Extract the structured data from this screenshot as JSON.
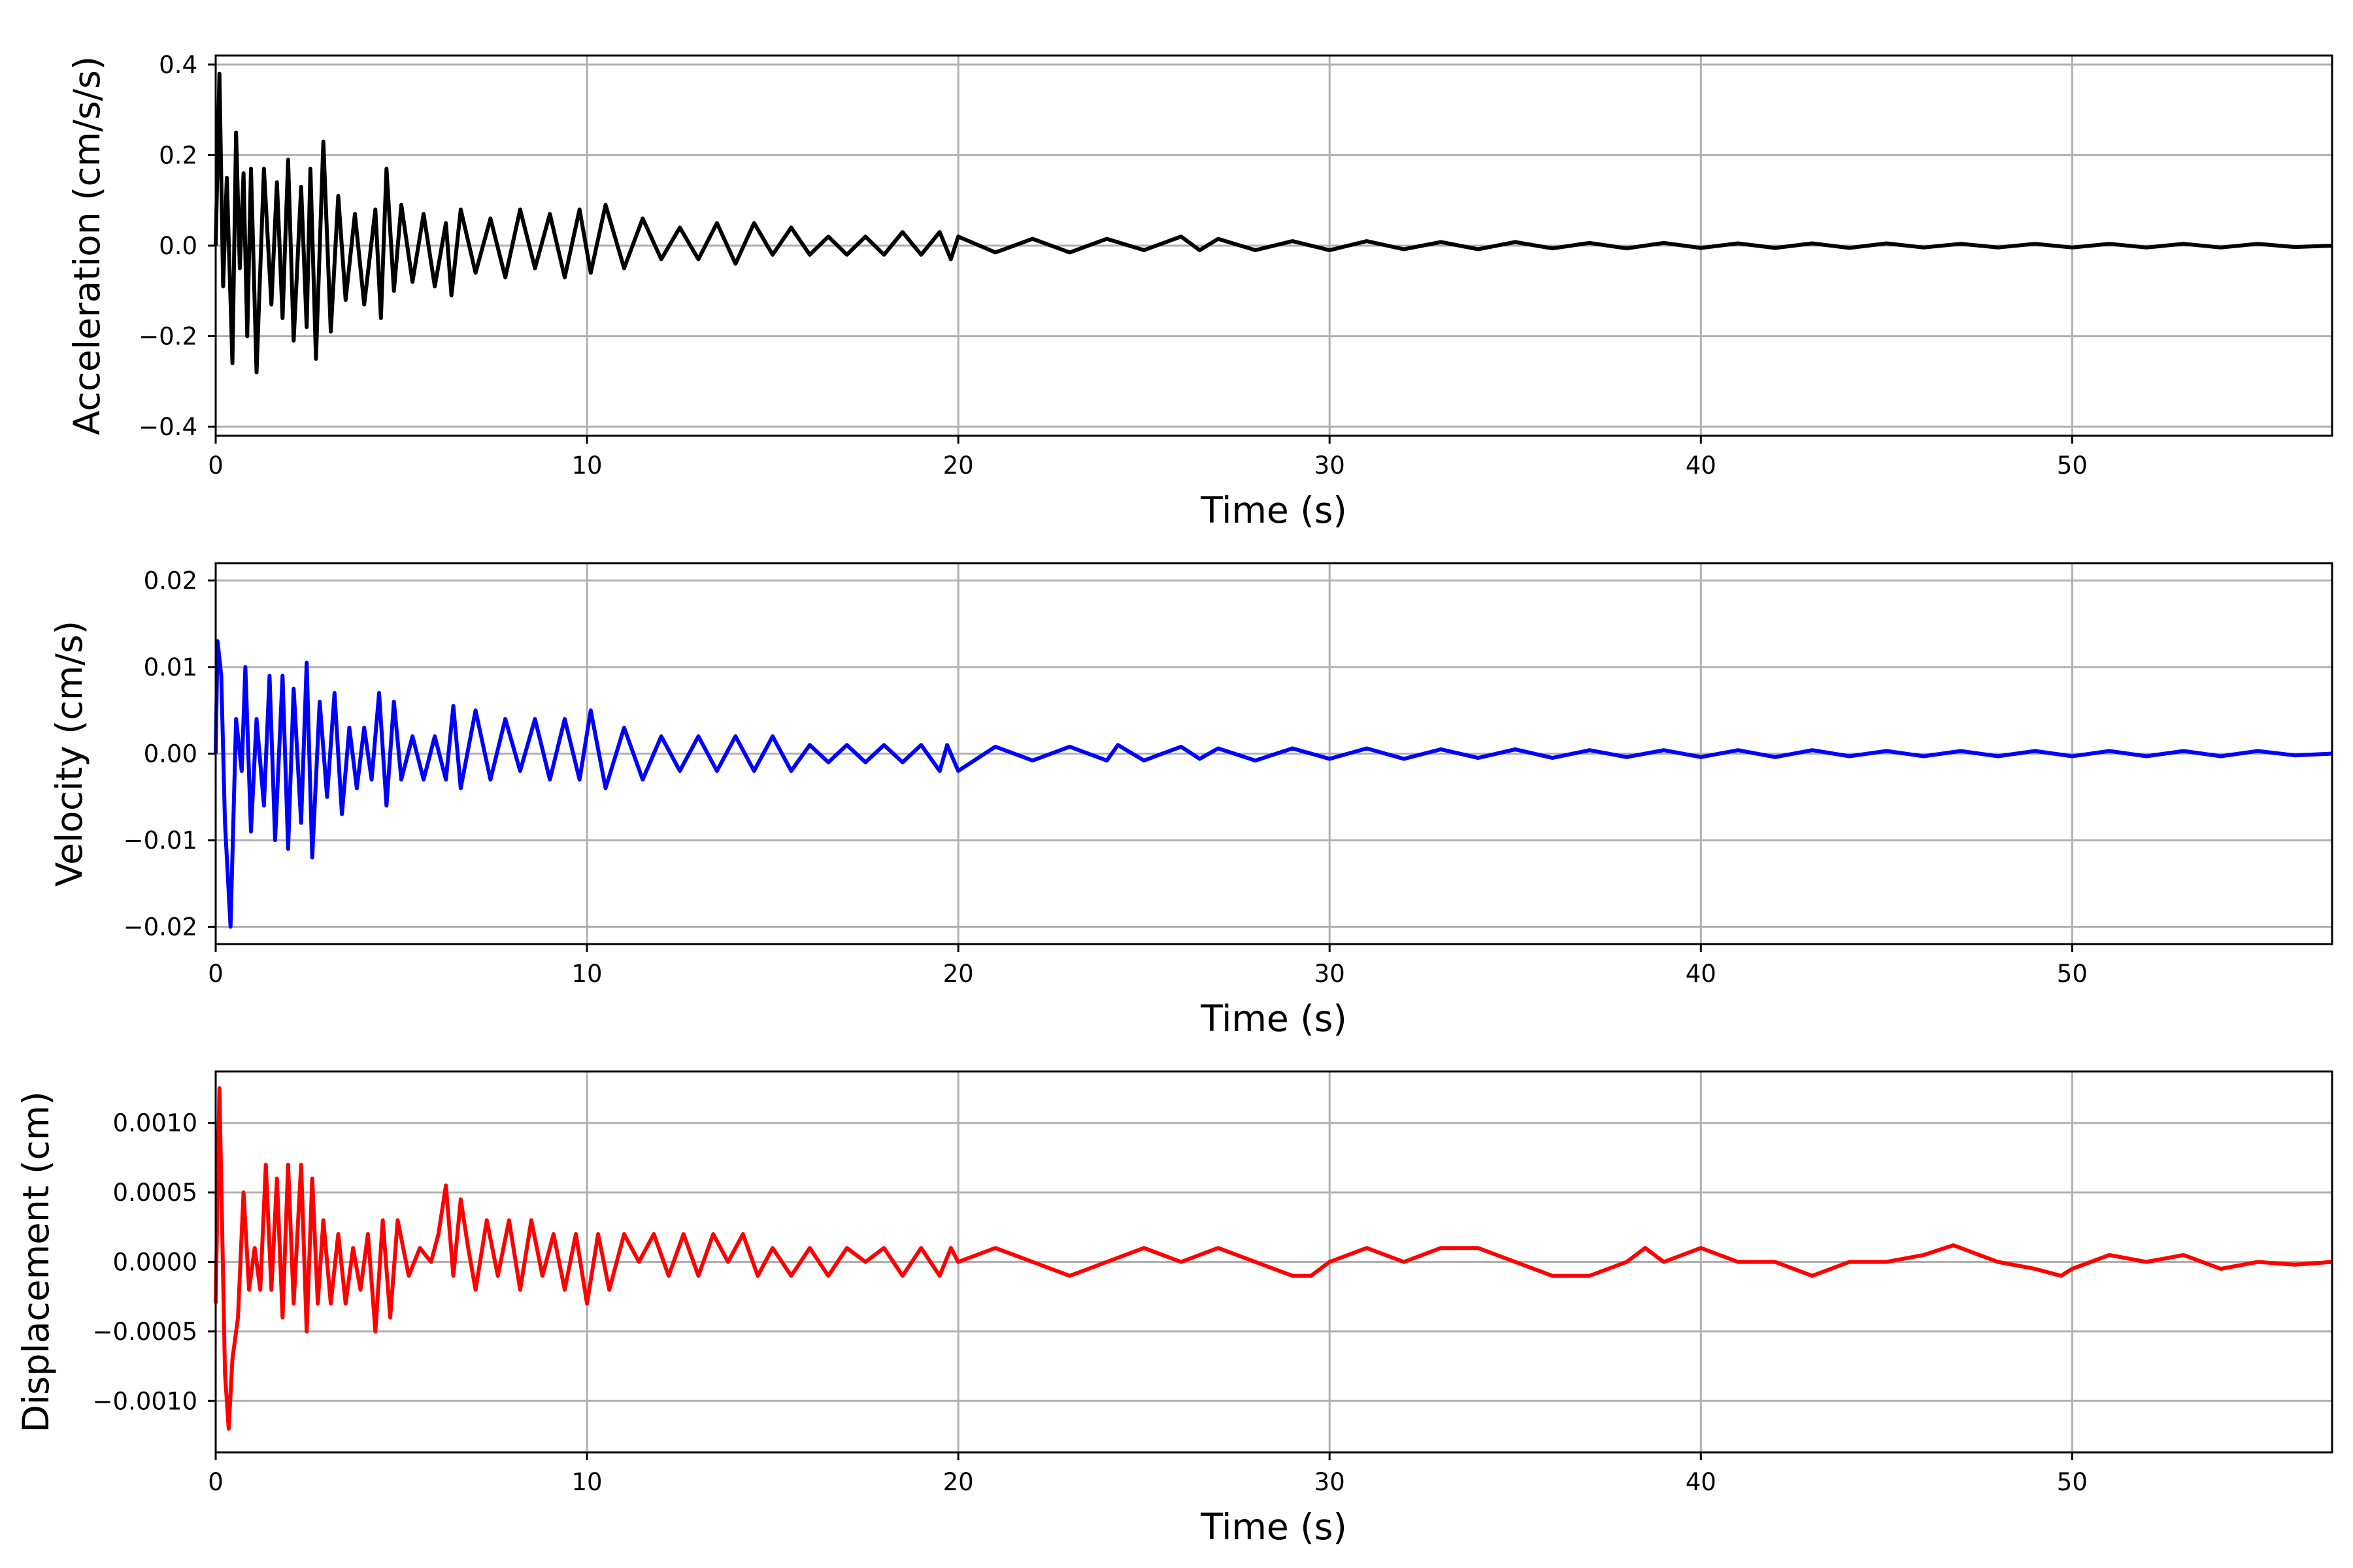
{
  "chart_data": [
    {
      "type": "line",
      "xlabel": "Time (s)",
      "ylabel": "Acceleration (cm/s/s)",
      "xlim": [
        0,
        57
      ],
      "ylim": [
        -0.42,
        0.42
      ],
      "xticks": [
        0,
        10,
        20,
        30,
        40,
        50
      ],
      "xtick_labels": [
        "0",
        "10",
        "20",
        "30",
        "40",
        "50"
      ],
      "yticks": [
        -0.4,
        -0.2,
        0.0,
        0.2,
        0.4
      ],
      "ytick_labels": [
        "−0.4",
        "−0.2",
        "0.0",
        "0.2",
        "0.4"
      ],
      "grid": true,
      "color": "#000000",
      "series": [
        {
          "x": [
            0,
            0.1,
            0.2,
            0.3,
            0.45,
            0.55,
            0.65,
            0.75,
            0.85,
            0.95,
            1.1,
            1.3,
            1.5,
            1.65,
            1.8,
            1.95,
            2.1,
            2.3,
            2.45,
            2.55,
            2.7,
            2.9,
            3.1,
            3.3,
            3.5,
            3.75,
            4.0,
            4.3,
            4.45,
            4.6,
            4.8,
            5.0,
            5.3,
            5.6,
            5.9,
            6.2,
            6.35,
            6.6,
            7.0,
            7.4,
            7.8,
            8.2,
            8.6,
            9.0,
            9.4,
            9.8,
            10.1,
            10.5,
            11.0,
            11.5,
            12.0,
            12.5,
            13.0,
            13.5,
            14.0,
            14.5,
            15.0,
            15.5,
            16.0,
            16.5,
            17.0,
            17.5,
            18.0,
            18.5,
            19.0,
            19.5,
            19.8,
            20.0,
            21.0,
            22.0,
            23.0,
            24.0,
            25.0,
            26.0,
            26.5,
            27.0,
            28.0,
            29.0,
            30.0,
            31.0,
            32.0,
            33.0,
            34.0,
            35.0,
            36.0,
            37.0,
            38.0,
            39.0,
            40.0,
            41.0,
            42.0,
            43.0,
            44.0,
            45.0,
            46.0,
            47.0,
            48.0,
            49.0,
            50.0,
            51.0,
            52.0,
            53.0,
            54.0,
            55.0,
            56.0,
            57.0
          ],
          "y": [
            0.0,
            0.38,
            -0.09,
            0.15,
            -0.26,
            0.25,
            -0.05,
            0.16,
            -0.2,
            0.17,
            -0.28,
            0.17,
            -0.13,
            0.14,
            -0.16,
            0.19,
            -0.21,
            0.13,
            -0.18,
            0.17,
            -0.25,
            0.23,
            -0.19,
            0.11,
            -0.12,
            0.07,
            -0.13,
            0.08,
            -0.16,
            0.17,
            -0.1,
            0.09,
            -0.08,
            0.07,
            -0.09,
            0.05,
            -0.11,
            0.08,
            -0.06,
            0.06,
            -0.07,
            0.08,
            -0.05,
            0.07,
            -0.07,
            0.08,
            -0.06,
            0.09,
            -0.05,
            0.06,
            -0.03,
            0.04,
            -0.03,
            0.05,
            -0.04,
            0.05,
            -0.02,
            0.04,
            -0.02,
            0.02,
            -0.02,
            0.02,
            -0.02,
            0.03,
            -0.02,
            0.03,
            -0.03,
            0.02,
            -0.015,
            0.015,
            -0.015,
            0.015,
            -0.01,
            0.02,
            -0.01,
            0.015,
            -0.01,
            0.01,
            -0.01,
            0.01,
            -0.008,
            0.008,
            -0.008,
            0.008,
            -0.006,
            0.006,
            -0.006,
            0.006,
            -0.005,
            0.005,
            -0.005,
            0.005,
            -0.005,
            0.005,
            -0.004,
            0.004,
            -0.004,
            0.004,
            -0.004,
            0.004,
            -0.004,
            0.004,
            -0.004,
            0.004,
            -0.003,
            0.0
          ]
        }
      ]
    },
    {
      "type": "line",
      "xlabel": "Time (s)",
      "ylabel": "Velocity (cm/s)",
      "xlim": [
        0,
        57
      ],
      "ylim": [
        -0.022,
        0.022
      ],
      "xticks": [
        0,
        10,
        20,
        30,
        40,
        50
      ],
      "xtick_labels": [
        "0",
        "10",
        "20",
        "30",
        "40",
        "50"
      ],
      "yticks": [
        -0.02,
        -0.01,
        0.0,
        0.01,
        0.02
      ],
      "ytick_labels": [
        "−0.02",
        "−0.01",
        "0.00",
        "0.01",
        "0.02"
      ],
      "grid": true,
      "color": "#0000ff",
      "series": [
        {
          "x": [
            0,
            0.05,
            0.15,
            0.25,
            0.4,
            0.55,
            0.7,
            0.8,
            0.95,
            1.1,
            1.3,
            1.45,
            1.6,
            1.8,
            1.95,
            2.1,
            2.3,
            2.45,
            2.6,
            2.8,
            3.0,
            3.2,
            3.4,
            3.6,
            3.8,
            4.0,
            4.2,
            4.4,
            4.6,
            4.8,
            5.0,
            5.3,
            5.6,
            5.9,
            6.2,
            6.4,
            6.6,
            7.0,
            7.4,
            7.8,
            8.2,
            8.6,
            9.0,
            9.4,
            9.8,
            10.1,
            10.5,
            11.0,
            11.5,
            12.0,
            12.5,
            13.0,
            13.5,
            14.0,
            14.5,
            15.0,
            15.5,
            16.0,
            16.5,
            17.0,
            17.5,
            18.0,
            18.5,
            19.0,
            19.5,
            19.7,
            20.0,
            21.0,
            22.0,
            23.0,
            24.0,
            24.3,
            25.0,
            26.0,
            26.5,
            27.0,
            28.0,
            29.0,
            30.0,
            31.0,
            32.0,
            33.0,
            34.0,
            35.0,
            36.0,
            37.0,
            38.0,
            39.0,
            40.0,
            41.0,
            42.0,
            43.0,
            44.0,
            45.0,
            46.0,
            47.0,
            48.0,
            49.0,
            50.0,
            51.0,
            52.0,
            53.0,
            54.0,
            55.0,
            56.0,
            57.0
          ],
          "y": [
            0.0,
            0.013,
            0.009,
            -0.008,
            -0.02,
            0.004,
            -0.002,
            0.01,
            -0.009,
            0.004,
            -0.006,
            0.009,
            -0.01,
            0.009,
            -0.011,
            0.0075,
            -0.008,
            0.0105,
            -0.012,
            0.006,
            -0.005,
            0.007,
            -0.007,
            0.003,
            -0.004,
            0.003,
            -0.003,
            0.007,
            -0.006,
            0.006,
            -0.003,
            0.002,
            -0.003,
            0.002,
            -0.003,
            0.0055,
            -0.004,
            0.005,
            -0.003,
            0.004,
            -0.002,
            0.004,
            -0.003,
            0.004,
            -0.003,
            0.005,
            -0.004,
            0.003,
            -0.003,
            0.002,
            -0.002,
            0.002,
            -0.002,
            0.002,
            -0.002,
            0.002,
            -0.002,
            0.001,
            -0.001,
            0.001,
            -0.001,
            0.001,
            -0.001,
            0.001,
            -0.002,
            0.001,
            -0.002,
            0.0008,
            -0.0008,
            0.0008,
            -0.0008,
            0.001,
            -0.0008,
            0.0008,
            -0.0006,
            0.0006,
            -0.0008,
            0.0006,
            -0.0006,
            0.0006,
            -0.0006,
            0.0005,
            -0.0005,
            0.0005,
            -0.0005,
            0.0004,
            -0.0004,
            0.0004,
            -0.0004,
            0.0004,
            -0.0004,
            0.0004,
            -0.0003,
            0.0003,
            -0.0003,
            0.0003,
            -0.0003,
            0.0003,
            -0.0003,
            0.0003,
            -0.0003,
            0.0003,
            -0.0003,
            0.0003,
            -0.0002,
            0.0
          ]
        }
      ]
    },
    {
      "type": "line",
      "xlabel": "Time (s)",
      "ylabel": "Displacement (cm)",
      "xlim": [
        0,
        57
      ],
      "ylim": [
        -0.00137,
        0.00137
      ],
      "xticks": [
        0,
        10,
        20,
        30,
        40,
        50
      ],
      "xtick_labels": [
        "0",
        "10",
        "20",
        "30",
        "40",
        "50"
      ],
      "yticks": [
        -0.001,
        -0.0005,
        0.0,
        0.0005,
        0.001
      ],
      "ytick_labels": [
        "−0.0010",
        "−0.0005",
        "0.0000",
        "0.0005",
        "0.0010"
      ],
      "grid": true,
      "color": "#ff0000",
      "series": [
        {
          "x": [
            0,
            0.1,
            0.25,
            0.35,
            0.45,
            0.6,
            0.75,
            0.9,
            1.05,
            1.2,
            1.35,
            1.5,
            1.65,
            1.8,
            1.95,
            2.1,
            2.3,
            2.45,
            2.6,
            2.75,
            2.9,
            3.1,
            3.3,
            3.5,
            3.7,
            3.9,
            4.1,
            4.3,
            4.5,
            4.7,
            4.9,
            5.2,
            5.5,
            5.8,
            6.0,
            6.2,
            6.4,
            6.6,
            6.8,
            7.0,
            7.3,
            7.6,
            7.9,
            8.2,
            8.5,
            8.8,
            9.1,
            9.4,
            9.7,
            10.0,
            10.3,
            10.6,
            11.0,
            11.4,
            11.8,
            12.2,
            12.6,
            13.0,
            13.4,
            13.8,
            14.2,
            14.6,
            15.0,
            15.5,
            16.0,
            16.5,
            17.0,
            17.5,
            18.0,
            18.5,
            19.0,
            19.5,
            19.8,
            20.0,
            21.0,
            22.0,
            23.0,
            24.0,
            25.0,
            26.0,
            27.0,
            28.0,
            29.0,
            29.5,
            30.0,
            31.0,
            32.0,
            33.0,
            34.0,
            35.0,
            36.0,
            37.0,
            38.0,
            38.5,
            39.0,
            40.0,
            41.0,
            42.0,
            43.0,
            44.0,
            45.0,
            46.0,
            46.8,
            47.5,
            48.0,
            49.0,
            49.7,
            50.0,
            51.0,
            52.0,
            53.0,
            54.0,
            55.0,
            56.0,
            57.0
          ],
          "y": [
            -0.0003,
            0.00125,
            -0.0008,
            -0.0012,
            -0.0007,
            -0.0004,
            0.0005,
            -0.0002,
            0.0001,
            -0.0002,
            0.0007,
            -0.0002,
            0.0006,
            -0.0004,
            0.0007,
            -0.0003,
            0.0007,
            -0.0005,
            0.0006,
            -0.0003,
            0.0003,
            -0.0003,
            0.0002,
            -0.0003,
            0.0001,
            -0.0002,
            0.0002,
            -0.0005,
            0.0003,
            -0.0004,
            0.0003,
            -0.0001,
            0.0001,
            0.0,
            0.0002,
            0.00055,
            -0.0001,
            0.00045,
            0.0001,
            -0.0002,
            0.0003,
            -0.0001,
            0.0003,
            -0.0002,
            0.0003,
            -0.0001,
            0.0002,
            -0.0002,
            0.0002,
            -0.0003,
            0.0002,
            -0.0002,
            0.0002,
            0.0,
            0.0002,
            -0.0001,
            0.0002,
            -0.0001,
            0.0002,
            0.0,
            0.0002,
            -0.0001,
            0.0001,
            -0.0001,
            0.0001,
            -0.0001,
            0.0001,
            0.0,
            0.0001,
            -0.0001,
            0.0001,
            -0.0001,
            0.0001,
            0.0,
            0.0001,
            0.0,
            -0.0001,
            0.0,
            0.0001,
            0.0,
            0.0001,
            0.0,
            -0.0001,
            -0.0001,
            0.0,
            0.0001,
            0.0,
            0.0001,
            0.0001,
            0.0,
            -0.0001,
            -0.0001,
            0.0,
            0.0001,
            0.0,
            0.0001,
            0.0,
            0.0,
            -0.0001,
            0.0,
            0.0,
            5e-05,
            0.00012,
            5e-05,
            0.0,
            -5e-05,
            -0.0001,
            -5e-05,
            5e-05,
            0.0,
            5e-05,
            -5e-05,
            0.0,
            -2e-05,
            0.0
          ]
        }
      ]
    }
  ]
}
